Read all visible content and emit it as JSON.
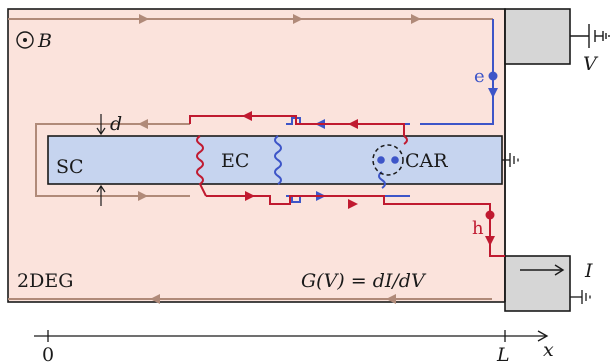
{
  "labels": {
    "b_field": "B",
    "voltage": "V",
    "current": "I",
    "electron": "e",
    "hole": "h",
    "sc": "SC",
    "ec": "EC",
    "car": "CAR",
    "gap": "d",
    "twodeg": "2DEG",
    "conductance": "G(V) = dI/dV",
    "axis_origin": "0",
    "axis_length": "L",
    "axis_var": "x"
  },
  "colors": {
    "twodeg_fill": "#fbe3dc",
    "sc_fill": "#c6d4ef",
    "lead_fill": "#d6d6d6",
    "edge_state": "#b08a79",
    "electron": "#3d55c8",
    "hole": "#c01a30",
    "outline": "#1a1a1a"
  }
}
